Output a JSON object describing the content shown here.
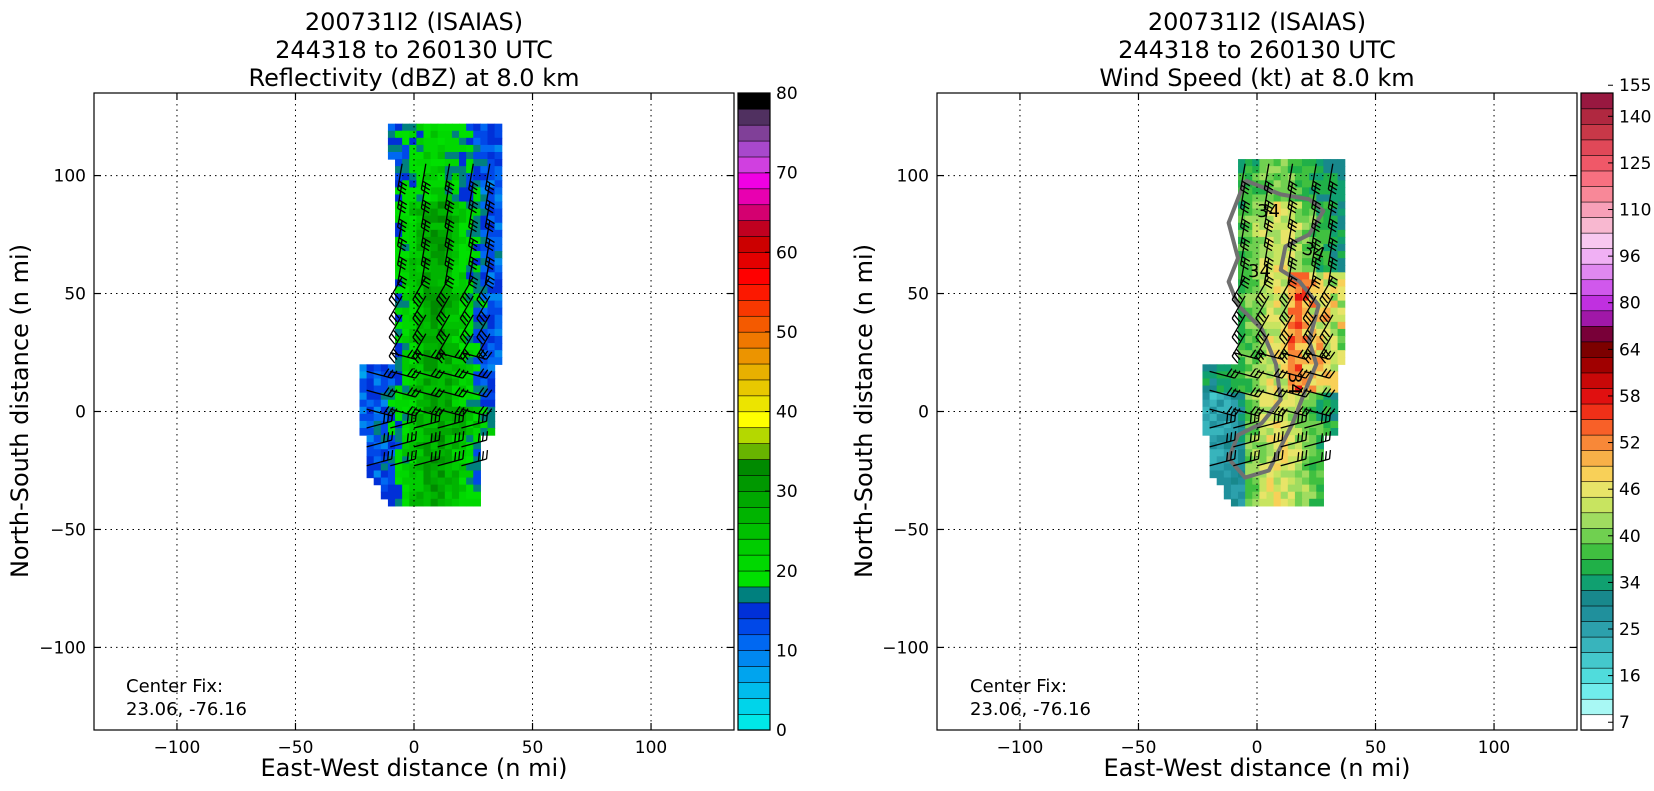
{
  "chart_data": [
    {
      "type": "heatmap",
      "panel": "reflectivity",
      "title_lines": [
        "200731I2 (ISAIAS)",
        "244318 to 260130 UTC",
        "Reflectivity (dBZ) at 8.0 km"
      ],
      "xlabel": "East-West distance (n mi)",
      "ylabel": "North-South distance (n mi)",
      "xlim": [
        -135,
        135
      ],
      "ylim": [
        -135,
        135
      ],
      "xticks": [
        -100,
        -50,
        0,
        50,
        100
      ],
      "xtick_labels": [
        "−100",
        "−50",
        "0",
        "50",
        "100"
      ],
      "yticks": [
        -100,
        -50,
        0,
        50,
        100
      ],
      "ytick_labels": [
        "−100",
        "−50",
        "0",
        "50",
        "100"
      ],
      "grid": "dotted",
      "center_fix_label": "Center Fix:",
      "center_fix_value": "23.06, -76.16",
      "colorbar": {
        "min": 0,
        "max": 80,
        "step": 2.5,
        "ticks": [
          0,
          10,
          20,
          30,
          40,
          50,
          60,
          70,
          80
        ],
        "tick_labels": [
          "0",
          "10",
          "20",
          "30",
          "40",
          "50",
          "60",
          "70",
          "80"
        ],
        "colors": [
          "#00e8e8",
          "#00d4ea",
          "#00bcec",
          "#00a4ee",
          "#0088f0",
          "#0068f2",
          "#0048e8",
          "#0030d8",
          "#00807e",
          "#00e000",
          "#00d800",
          "#00cc00",
          "#00c000",
          "#00b400",
          "#00a800",
          "#009800",
          "#008a00",
          "#68b400",
          "#b4d800",
          "#ffff00",
          "#ece400",
          "#e8c800",
          "#e8b000",
          "#ec9400",
          "#f07800",
          "#f45a00",
          "#f83800",
          "#fc1800",
          "#ff0000",
          "#e40000",
          "#cc0000",
          "#c00020",
          "#d40070",
          "#e800b0",
          "#f000e4",
          "#d040e0",
          "#a848cc",
          "#804098",
          "#503060",
          "#000000"
        ]
      }
    },
    {
      "type": "heatmap",
      "panel": "wind_speed",
      "title_lines": [
        "200731I2 (ISAIAS)",
        "244318 to 260130 UTC",
        "Wind Speed (kt) at 8.0 km"
      ],
      "xlabel": "East-West distance (n mi)",
      "ylabel": "North-South distance (n mi)",
      "xlim": [
        -135,
        135
      ],
      "ylim": [
        -135,
        135
      ],
      "xticks": [
        -100,
        -50,
        0,
        50,
        100
      ],
      "xtick_labels": [
        "−100",
        "−50",
        "0",
        "50",
        "100"
      ],
      "yticks": [
        -100,
        -50,
        0,
        50,
        100
      ],
      "ytick_labels": [
        "−100",
        "−50",
        "0",
        "50",
        "100"
      ],
      "grid": "dotted",
      "center_fix_label": "Center Fix:",
      "center_fix_value": "23.06, -76.16",
      "contour_labels": [
        "34",
        "34",
        "34",
        "34"
      ],
      "colorbar": {
        "ticks": [
          7,
          16,
          25,
          34,
          40,
          46,
          52,
          58,
          64,
          80,
          96,
          110,
          125,
          140,
          155
        ],
        "tick_labels": [
          "7",
          "16",
          "25",
          "34",
          "40",
          "46",
          "52",
          "58",
          "64",
          "80",
          "96",
          "110",
          "125",
          "140",
          "155"
        ],
        "colors": [
          "#ffffff",
          "#a8f8f4",
          "#70ecec",
          "#50dcdc",
          "#44c8cc",
          "#38b4bc",
          "#2ca0ac",
          "#20909c",
          "#18888c",
          "#10a070",
          "#20b048",
          "#40c040",
          "#70d050",
          "#a0dc60",
          "#c8e460",
          "#e8e468",
          "#f8d058",
          "#f8b048",
          "#f88838",
          "#f86028",
          "#f03018",
          "#e01010",
          "#c80808",
          "#a00000",
          "#7c0000",
          "#780038",
          "#a018a8",
          "#c030e0",
          "#d058ec",
          "#e088f0",
          "#f0b0f4",
          "#f8c8f0",
          "#f8b8d0",
          "#f8a0b8",
          "#f88898",
          "#f87080",
          "#f05868",
          "#e04858",
          "#c83848",
          "#b02840",
          "#981840"
        ]
      }
    }
  ]
}
